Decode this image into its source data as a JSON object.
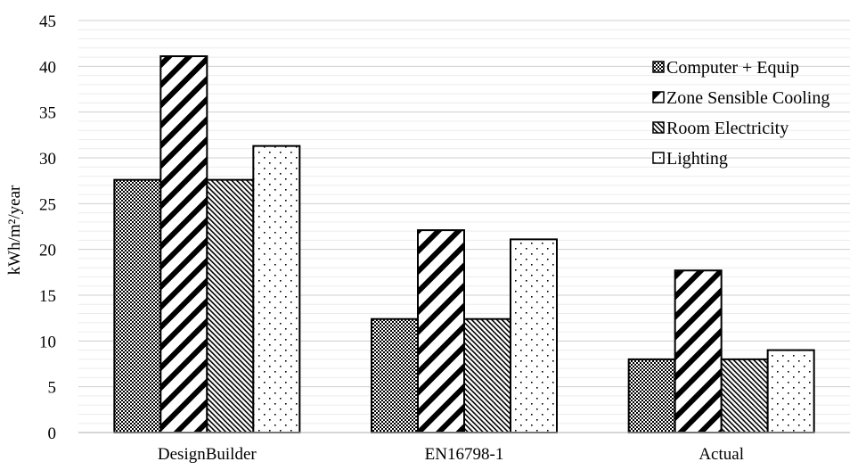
{
  "chart_data": {
    "type": "bar",
    "title": "",
    "xlabel": "",
    "ylabel": "kWh/m²/year",
    "ylim": [
      0,
      45
    ],
    "yticks": [
      0,
      5,
      10,
      15,
      20,
      25,
      30,
      35,
      40,
      45
    ],
    "grid": true,
    "legend_position": "top-right",
    "categories": [
      "DesignBuilder",
      "EN16798-1",
      "Actual"
    ],
    "series": [
      {
        "name": "Computer + Equip",
        "pattern": "checker",
        "values": [
          27.6,
          12.4,
          8.0
        ]
      },
      {
        "name": "Zone Sensible Cooling",
        "pattern": "diagonal-thick",
        "values": [
          41.1,
          22.1,
          17.7
        ]
      },
      {
        "name": "Room Electricity",
        "pattern": "diagonal-fine",
        "values": [
          27.6,
          12.4,
          8.0
        ]
      },
      {
        "name": "Lighting",
        "pattern": "dots",
        "values": [
          31.3,
          21.1,
          9.0
        ]
      }
    ]
  }
}
